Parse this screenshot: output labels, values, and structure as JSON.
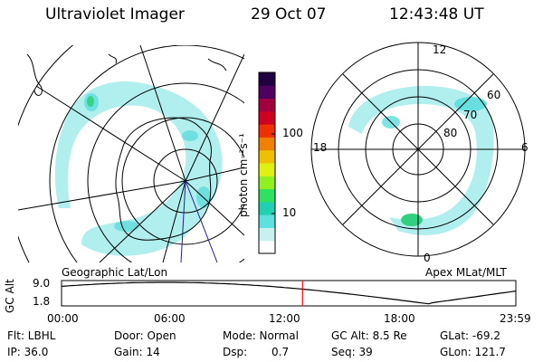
{
  "header": {
    "instrument": "Ultraviolet Imager",
    "date": "29 Oct 07",
    "time": "12:43:48 UT"
  },
  "colorbar": {
    "unit_label": "photon cm⁻²s⁻¹",
    "ticks": [
      "100",
      "10"
    ],
    "scale": "log",
    "colors": [
      "#ffffff",
      "#c8f0f0",
      "#5ce0e0",
      "#20d0b0",
      "#30e060",
      "#90f020",
      "#e0f010",
      "#f0c000",
      "#f08000",
      "#f03000",
      "#d00020",
      "#a00040",
      "#500060",
      "#200040"
    ]
  },
  "left_map": {
    "caption": "Geographic Lat/Lon"
  },
  "right_map": {
    "caption": "Apex MLat/MLT",
    "mlt_labels": {
      "top": "12",
      "left": "18",
      "right": "6",
      "bottom": "0"
    },
    "lat_labels": [
      "60",
      "70",
      "80"
    ]
  },
  "timeline": {
    "ylabel": "GC Alt",
    "yticks": [
      "9.0",
      "1.8"
    ],
    "xticks": [
      "00:00",
      "06:00",
      "12:00",
      "18:00",
      "23:59"
    ],
    "marker_time_hours": 12.73
  },
  "footer": {
    "flt": "Flt: LBHL",
    "door": "Door: Open",
    "mode": "Mode: Normal",
    "gc_alt": "GC Alt: 8.5 Re",
    "glat": "GLat: -69.2",
    "ip": "IP: 36.0",
    "gain": "Gain: 14",
    "dsp_label": "Dsp:",
    "dsp_value": "0.7",
    "seq": "Seq: 39",
    "glon": "GLon: 121.7"
  }
}
